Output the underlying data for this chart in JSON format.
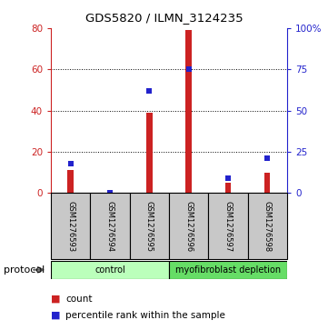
{
  "title": "GDS5820 / ILMN_3124235",
  "samples": [
    "GSM1276593",
    "GSM1276594",
    "GSM1276595",
    "GSM1276596",
    "GSM1276597",
    "GSM1276598"
  ],
  "counts": [
    11,
    0,
    39,
    79,
    5,
    10
  ],
  "percentiles": [
    18,
    0,
    62,
    75,
    9,
    21
  ],
  "ylim_left": [
    0,
    80
  ],
  "ylim_right": [
    0,
    100
  ],
  "yticks_left": [
    0,
    20,
    40,
    60,
    80
  ],
  "yticks_right": [
    0,
    25,
    50,
    75,
    100
  ],
  "ytick_labels_right": [
    "0",
    "25",
    "50",
    "75",
    "100%"
  ],
  "bar_color": "#cc2222",
  "dot_color": "#2222cc",
  "protocol_groups": [
    {
      "label": "control",
      "start": 0,
      "end": 3,
      "color": "#bbffbb"
    },
    {
      "label": "myofibroblast depletion",
      "start": 3,
      "end": 6,
      "color": "#66dd66"
    }
  ],
  "legend_count_label": "count",
  "legend_percentile_label": "percentile rank within the sample",
  "protocol_label": "protocol",
  "bg_color": "#ffffff",
  "sample_box_color": "#c8c8c8",
  "bar_width": 0.15
}
